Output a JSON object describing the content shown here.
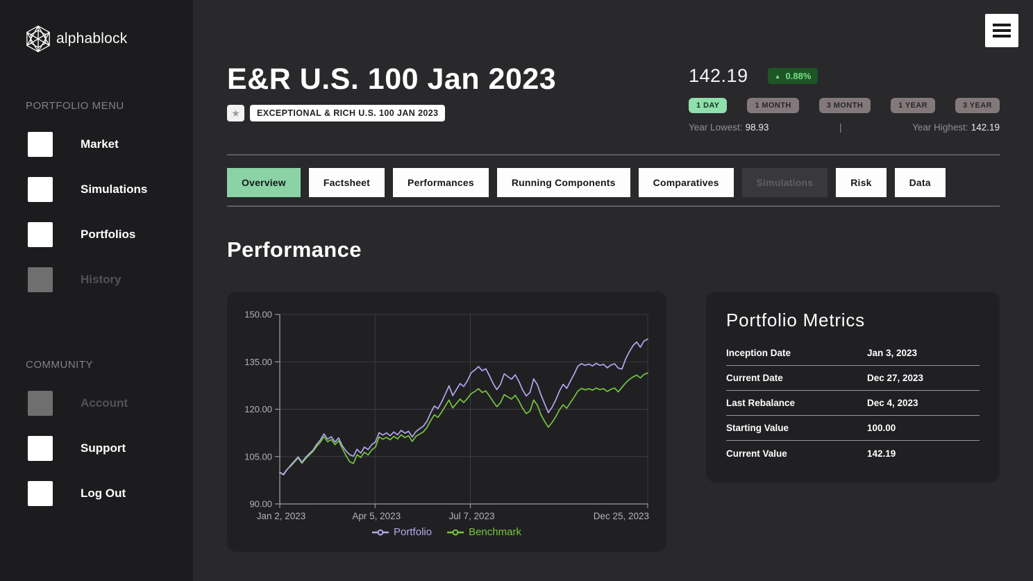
{
  "brand": {
    "name": "alphablock"
  },
  "sidebar": {
    "sections": [
      {
        "title": "PORTFOLIO MENU",
        "items": [
          {
            "label": "Market"
          },
          {
            "label": "Simulations"
          },
          {
            "label": "Portfolios"
          },
          {
            "label": "History"
          }
        ]
      },
      {
        "title": "COMMUNITY",
        "items": [
          {
            "label": "Account"
          },
          {
            "label": "Support"
          },
          {
            "label": "Log Out"
          }
        ]
      }
    ]
  },
  "header": {
    "title": "E&R U.S. 100 Jan 2023",
    "favorite_icon": "★",
    "name_badge": "EXCEPTIONAL & RICH U.S. 100 JAN 2023",
    "price": "142.19",
    "change_arrow": "▲",
    "change": "0.88%",
    "periods": [
      {
        "label": "1 DAY"
      },
      {
        "label": "1 MONTH"
      },
      {
        "label": "3 MONTH"
      },
      {
        "label": "1 YEAR"
      },
      {
        "label": "3 YEAR"
      }
    ],
    "active_period": "1 DAY",
    "year_lowest_label": "Year Lowest:",
    "year_lowest": "98.93",
    "separator": "|",
    "year_highest_label": "Year Highest:",
    "year_highest": "142.19"
  },
  "tabs": [
    {
      "label": "Overview"
    },
    {
      "label": "Factsheet"
    },
    {
      "label": "Performances"
    },
    {
      "label": "Running Components"
    },
    {
      "label": "Comparatives"
    },
    {
      "label": "Simulations"
    },
    {
      "label": "Risk"
    },
    {
      "label": "Data"
    }
  ],
  "section_title": "Performance",
  "chart_data": {
    "type": "line",
    "title": "",
    "xlabel": "",
    "ylabel": "",
    "ylim": [
      90,
      150
    ],
    "y_ticks": [
      {
        "value": 90,
        "label": "90.00"
      },
      {
        "value": 105,
        "label": "105.00"
      },
      {
        "value": 120,
        "label": "120.00"
      },
      {
        "value": 135,
        "label": "135.00"
      },
      {
        "value": 150,
        "label": "150.00"
      }
    ],
    "x_ticks": [
      {
        "f": 0.0,
        "label": "Jan 2, 2023"
      },
      {
        "f": 0.259,
        "label": "Apr 5, 2023"
      },
      {
        "f": 0.518,
        "label": "Jul 7, 2023"
      },
      {
        "f": 1.0,
        "label": "Dec 25, 2023"
      }
    ],
    "grid": true,
    "legend_position": "bottom",
    "series": [
      {
        "name": "Portfolio",
        "color": "#b3a9ee",
        "values": [
          100.0,
          99.2,
          100.9,
          102.3,
          103.6,
          104.9,
          103.2,
          104.7,
          105.9,
          107.0,
          108.8,
          110.2,
          112.2,
          110.5,
          111.3,
          109.6,
          110.9,
          108.4,
          106.8,
          105.6,
          105.1,
          107.3,
          106.1,
          108.0,
          107.2,
          108.8,
          109.6,
          112.6,
          111.8,
          112.5,
          111.6,
          112.8,
          111.9,
          113.3,
          112.4,
          113.0,
          111.2,
          112.9,
          113.8,
          114.6,
          116.2,
          118.8,
          121.0,
          120.2,
          122.3,
          124.8,
          127.4,
          124.3,
          126.2,
          128.1,
          127.2,
          129.0,
          131.5,
          132.4,
          133.5,
          132.2,
          132.8,
          130.6,
          128.1,
          126.2,
          127.9,
          131.2,
          130.3,
          129.5,
          130.9,
          128.8,
          126.1,
          124.2,
          125.3,
          129.6,
          127.8,
          124.5,
          121.7,
          118.9,
          120.6,
          122.9,
          125.7,
          127.9,
          126.6,
          128.9,
          131.1,
          133.6,
          134.4,
          133.9,
          134.3,
          133.7,
          134.5,
          133.9,
          134.2,
          133.1,
          134.0,
          134.4,
          133.0,
          132.7,
          135.9,
          138.2,
          140.1,
          141.3,
          139.6,
          141.6,
          142.19
        ]
      },
      {
        "name": "Benchmark",
        "color": "#77c73e",
        "values": [
          100.0,
          99.4,
          101.0,
          102.0,
          103.3,
          104.6,
          102.9,
          104.3,
          105.5,
          106.6,
          108.2,
          109.5,
          111.3,
          109.7,
          110.4,
          108.8,
          110.0,
          107.6,
          105.3,
          103.4,
          102.8,
          105.6,
          104.7,
          106.4,
          105.5,
          107.1,
          108.0,
          111.2,
          110.5,
          111.1,
          110.3,
          111.4,
          110.6,
          111.9,
          111.0,
          111.6,
          109.8,
          111.4,
          112.1,
          112.8,
          114.2,
          116.4,
          118.2,
          117.4,
          119.1,
          121.0,
          122.9,
          120.4,
          121.8,
          123.2,
          122.1,
          123.4,
          124.9,
          125.6,
          126.5,
          125.3,
          125.8,
          124.2,
          122.4,
          120.8,
          122.1,
          124.6,
          123.9,
          123.2,
          124.4,
          122.6,
          120.3,
          118.6,
          119.4,
          122.9,
          121.3,
          118.2,
          116.1,
          114.3,
          115.8,
          117.6,
          119.8,
          121.4,
          120.3,
          122.1,
          123.8,
          125.7,
          126.6,
          126.1,
          126.5,
          126.0,
          126.7,
          126.2,
          126.5,
          125.6,
          126.3,
          126.7,
          125.5,
          126.9,
          128.3,
          129.4,
          130.2,
          130.8,
          129.9,
          131.0,
          131.48
        ]
      }
    ]
  },
  "metrics": {
    "title": "Portfolio Metrics",
    "rows": [
      {
        "label": "Inception Date",
        "value": "Jan 3, 2023"
      },
      {
        "label": "Current Date",
        "value": "Dec 27, 2023"
      },
      {
        "label": "Last Rebalance",
        "value": "Dec 4, 2023"
      },
      {
        "label": "Starting Value",
        "value": "100.00"
      },
      {
        "label": "Current Value",
        "value": "142.19"
      }
    ]
  },
  "colors": {
    "sidebar_bg": "#1c1c1e",
    "main_bg": "#29292c",
    "card_bg": "#202023",
    "accent_green": "#8bd3a4",
    "active_period_bg": "#8fe0ad",
    "change_badge_bg": "#1f5426",
    "change_badge_text": "#74e084",
    "portfolio_line": "#b3a9ee",
    "benchmark_line": "#77c73e"
  }
}
